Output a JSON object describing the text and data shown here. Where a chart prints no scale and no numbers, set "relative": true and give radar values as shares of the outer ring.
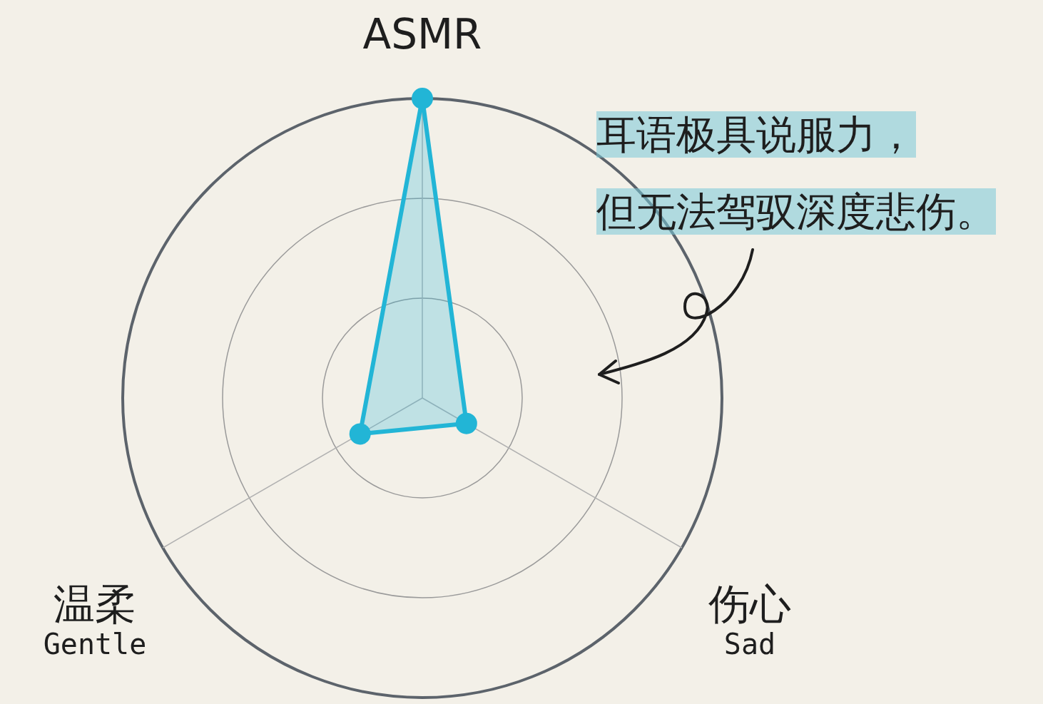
{
  "chart_data": {
    "type": "radar",
    "relative": true,
    "categories": [
      "ASMR",
      "伤心\nSad",
      "温柔\nGentle"
    ],
    "series": [
      {
        "color": "#22b5d6",
        "values": [
          1,
          0.17,
          0.24
        ]
      }
    ],
    "grid": true,
    "legend": false,
    "marker": "circle",
    "annotations": [
      "耳语极具说服力，",
      "但无法驾驭深度悲伤。"
    ]
  }
}
